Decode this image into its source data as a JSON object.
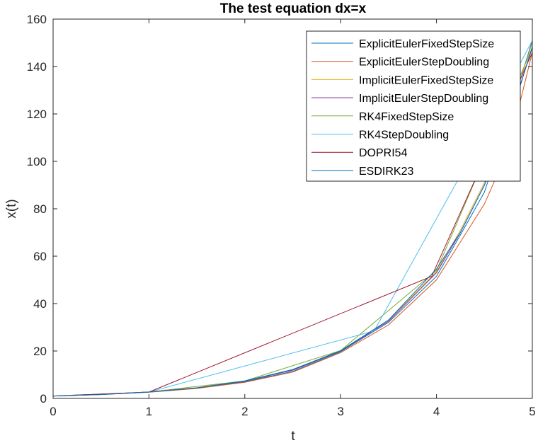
{
  "chart_data": {
    "type": "line",
    "title": "The test equation dx=x",
    "xlabel": "t",
    "ylabel": "x(t)",
    "xlim": [
      0,
      5
    ],
    "ylim": [
      0,
      160
    ],
    "xticks": [
      "0",
      "1",
      "2",
      "3",
      "4",
      "5"
    ],
    "yticks": [
      "0",
      "20",
      "40",
      "60",
      "80",
      "100",
      "120",
      "140",
      "160"
    ],
    "grid": false,
    "legend_position": "top-right",
    "series": [
      {
        "name": "ExplicitEulerFixedStepSize",
        "color": "#0072BD",
        "x": [
          0,
          0.5,
          1,
          1.5,
          2,
          2.5,
          3,
          3.5,
          4,
          4.25,
          4.5,
          4.75,
          5
        ],
        "y": [
          1,
          1.63,
          2.64,
          4.3,
          7.0,
          11.4,
          19.7,
          32.1,
          51.5,
          69.0,
          87.0,
          118.0,
          151.0
        ]
      },
      {
        "name": "ExplicitEulerStepDoubling",
        "color": "#D95319",
        "x": [
          0,
          0.5,
          1,
          1.5,
          2,
          2.5,
          3,
          3.5,
          4,
          4.25,
          4.5,
          4.75,
          5
        ],
        "y": [
          1,
          1.62,
          2.6,
          4.2,
          6.8,
          11.1,
          19.3,
          31.0,
          50.0,
          66.0,
          82.0,
          105.0,
          146.0
        ]
      },
      {
        "name": "ImplicitEulerFixedStepSize",
        "color": "#EDB120",
        "x": [
          0,
          0.5,
          1,
          1.5,
          2,
          2.5,
          3,
          3.5,
          4,
          4.25,
          4.5,
          4.75,
          5
        ],
        "y": [
          1,
          1.66,
          2.75,
          4.5,
          7.4,
          12.1,
          20.2,
          33.0,
          53.5,
          71.0,
          91.0,
          119.0,
          150.0
        ]
      },
      {
        "name": "ImplicitEulerStepDoubling",
        "color": "#7E2F8E",
        "x": [
          0,
          0.5,
          1,
          1.5,
          2,
          2.5,
          3,
          3.5,
          4,
          4.25,
          4.5,
          4.75,
          5
        ],
        "y": [
          1,
          1.65,
          2.72,
          4.45,
          7.3,
          11.9,
          20.0,
          32.6,
          53.0,
          70.0,
          90.0,
          117.0,
          148.0
        ]
      },
      {
        "name": "RK4FixedStepSize",
        "color": "#77AC30",
        "x": [
          0,
          1,
          2,
          3,
          4,
          5
        ],
        "y": [
          1,
          2.7,
          7.4,
          20.2,
          54.0,
          148.0
        ]
      },
      {
        "name": "RK4StepDoubling",
        "color": "#4DBEEE",
        "x": [
          0,
          1,
          3.35,
          4.4,
          5
        ],
        "y": [
          1,
          2.7,
          28.5,
          105.0,
          151.0
        ]
      },
      {
        "name": "DOPRI54",
        "color": "#A2142F",
        "x": [
          0,
          1,
          3.95,
          5
        ],
        "y": [
          1,
          2.7,
          51.5,
          146.0
        ]
      },
      {
        "name": "ESDIRK23",
        "color": "#0072BD",
        "x": [
          0,
          0.5,
          1,
          1.5,
          2,
          2.5,
          3,
          3.5,
          4,
          4.25,
          4.5,
          4.75,
          5
        ],
        "y": [
          1,
          1.65,
          2.72,
          4.48,
          7.39,
          12.2,
          20.1,
          33.1,
          54.6,
          70.1,
          90.0,
          115.6,
          148.4
        ]
      }
    ]
  }
}
